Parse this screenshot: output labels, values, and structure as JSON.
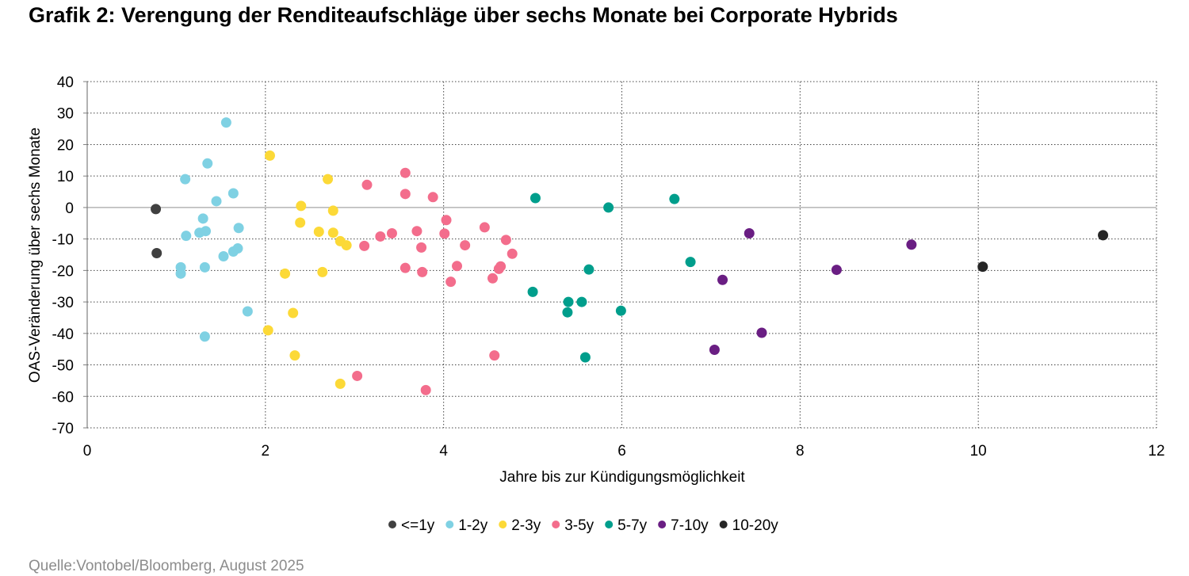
{
  "chart_title": "Grafik 2: Verengung der Renditeaufschläge über sechs Monate bei Corporate Hybrids",
  "source": "Quelle:Vontobel/Bloomberg, August 2025",
  "chart_data": {
    "type": "scatter",
    "xlabel": "Jahre bis zur Kündigungsmöglichkeit",
    "ylabel": "OAS-Veränderung über sechs Monate",
    "xlim": [
      0,
      12
    ],
    "ylim": [
      -70,
      40
    ],
    "x_ticks": [
      0,
      2,
      4,
      6,
      8,
      10,
      12
    ],
    "y_ticks": [
      40,
      30,
      20,
      10,
      0,
      -10,
      -20,
      -30,
      -40,
      -50,
      -60,
      -70
    ],
    "grid": "dotted",
    "legend_position": "bottom",
    "series": [
      {
        "name": "<=1y",
        "color": "#404040",
        "points": [
          [
            0.77,
            -0.5
          ],
          [
            0.78,
            -14.5
          ]
        ]
      },
      {
        "name": "1-2y",
        "color": "#7fd1e3",
        "points": [
          [
            1.56,
            27
          ],
          [
            1.1,
            9
          ],
          [
            1.35,
            14
          ],
          [
            1.45,
            2
          ],
          [
            1.64,
            4.5
          ],
          [
            1.3,
            -3.5
          ],
          [
            1.33,
            -7.5
          ],
          [
            1.26,
            -8
          ],
          [
            1.11,
            -9
          ],
          [
            1.7,
            -6.5
          ],
          [
            1.69,
            -13
          ],
          [
            1.64,
            -14
          ],
          [
            1.53,
            -15.5
          ],
          [
            1.05,
            -19
          ],
          [
            1.05,
            -21
          ],
          [
            1.32,
            -19
          ],
          [
            1.8,
            -33
          ],
          [
            1.32,
            -41
          ]
        ]
      },
      {
        "name": "2-3y",
        "color": "#fcd937",
        "points": [
          [
            2.05,
            16.5
          ],
          [
            2.7,
            9
          ],
          [
            2.4,
            0.5
          ],
          [
            2.76,
            -1
          ],
          [
            2.39,
            -4.8
          ],
          [
            2.6,
            -7.7
          ],
          [
            2.76,
            -8
          ],
          [
            2.84,
            -10.7
          ],
          [
            2.91,
            -12
          ],
          [
            2.64,
            -20.5
          ],
          [
            2.22,
            -21
          ],
          [
            2.31,
            -33.5
          ],
          [
            2.03,
            -39
          ],
          [
            2.33,
            -47
          ],
          [
            2.84,
            -56
          ]
        ]
      },
      {
        "name": "3-5y",
        "color": "#f36d8c",
        "points": [
          [
            3.57,
            11
          ],
          [
            3.14,
            7.2
          ],
          [
            3.57,
            4.3
          ],
          [
            3.88,
            3.3
          ],
          [
            4.03,
            -4
          ],
          [
            4.46,
            -6.3
          ],
          [
            3.7,
            -7.5
          ],
          [
            3.42,
            -8.2
          ],
          [
            3.29,
            -9.2
          ],
          [
            4.01,
            -8.3
          ],
          [
            4.7,
            -10.3
          ],
          [
            3.11,
            -12.2
          ],
          [
            3.75,
            -12.7
          ],
          [
            4.24,
            -12
          ],
          [
            4.77,
            -14.7
          ],
          [
            4.15,
            -18.6
          ],
          [
            4.64,
            -18.7
          ],
          [
            4.62,
            -19.5
          ],
          [
            3.57,
            -19.2
          ],
          [
            3.76,
            -20.5
          ],
          [
            4.55,
            -22.5
          ],
          [
            4.08,
            -23.6
          ],
          [
            4.57,
            -47
          ],
          [
            3.03,
            -53.5
          ],
          [
            3.8,
            -58
          ]
        ]
      },
      {
        "name": "5-7y",
        "color": "#009e8c",
        "points": [
          [
            5.03,
            3
          ],
          [
            5.85,
            0
          ],
          [
            6.59,
            2.7
          ],
          [
            6.77,
            -17.3
          ],
          [
            5.63,
            -19.7
          ],
          [
            5.0,
            -26.8
          ],
          [
            5.4,
            -30
          ],
          [
            5.55,
            -30
          ],
          [
            5.39,
            -33.3
          ],
          [
            5.99,
            -32.8
          ],
          [
            5.59,
            -47.6
          ]
        ]
      },
      {
        "name": "7-10y",
        "color": "#6a1e83",
        "points": [
          [
            7.43,
            -8.2
          ],
          [
            9.25,
            -11.8
          ],
          [
            8.41,
            -19.8
          ],
          [
            7.13,
            -23
          ],
          [
            7.04,
            -45.2
          ],
          [
            7.57,
            -39.8
          ]
        ]
      },
      {
        "name": "10-20y",
        "color": "#262626",
        "points": [
          [
            11.4,
            -8.8
          ],
          [
            10.05,
            -18.8
          ]
        ]
      }
    ]
  }
}
